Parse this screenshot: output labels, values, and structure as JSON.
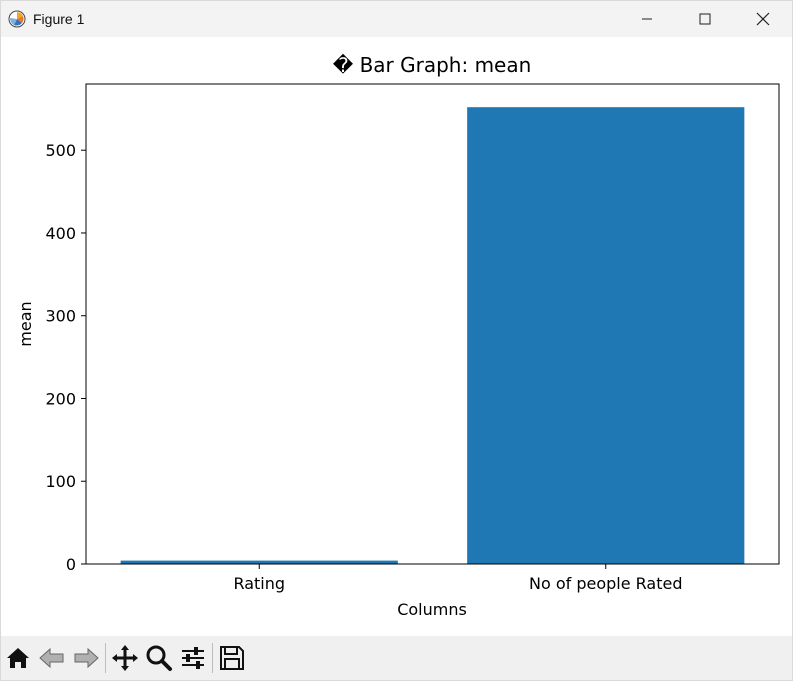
{
  "window": {
    "title": "Figure 1",
    "icons": {
      "app": "matplotlib-logo-icon",
      "minimize": "minimize-icon",
      "maximize": "maximize-icon",
      "close": "close-icon"
    }
  },
  "toolbar": {
    "buttons": [
      "home-icon",
      "back-arrow-icon",
      "forward-arrow-icon",
      "pan-icon",
      "zoom-icon",
      "configure-subplots-icon",
      "save-icon"
    ]
  },
  "colors": {
    "bar": "#1f77b4",
    "axes": "#000000",
    "toolbar_bg": "#f0f0f0"
  },
  "chart_data": {
    "type": "bar",
    "title": "� Bar Graph: mean",
    "xlabel": "Columns",
    "ylabel": "mean",
    "categories": [
      "Rating",
      "No of people Rated"
    ],
    "values": [
      4.1,
      552
    ],
    "ylim": [
      0,
      580
    ],
    "yticks": [
      0,
      100,
      200,
      300,
      400,
      500
    ],
    "grid": false,
    "legend": "none"
  }
}
